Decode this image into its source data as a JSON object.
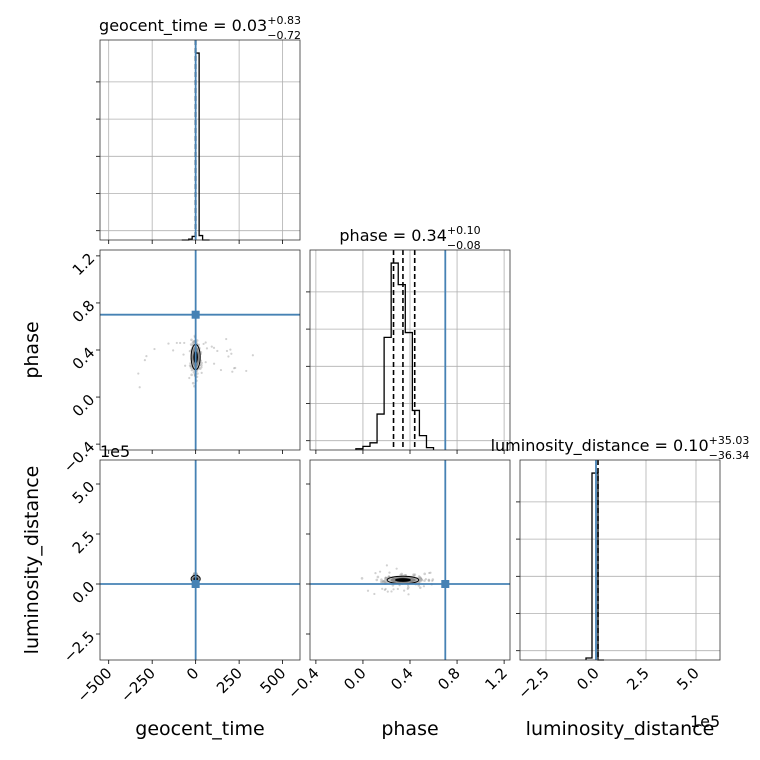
{
  "figure": {
    "type": "corner-plot",
    "truth_color": "#4682b4",
    "colors": {
      "hist": "#000000",
      "grid": "#b0b0b0",
      "scatter": "#808080"
    }
  },
  "chart_data": {
    "type": "corner",
    "parameters": [
      {
        "name": "geocent_time",
        "axis_label": "geocent_time",
        "range": [
          -550,
          600
        ],
        "ticks": [
          -500,
          -250,
          0,
          250,
          500
        ],
        "tick_labels": [
          "−500",
          "−250",
          "0",
          "250",
          "500"
        ],
        "median": 0.03,
        "q_lower": -0.69,
        "q_upper": 0.86,
        "truth": 0,
        "title": {
          "lhs": "geocent_time = 0.03",
          "sup": "+0.83",
          "sub": "−0.72"
        },
        "hist": {
          "edges": [
            -80,
            -60,
            -40,
            -20,
            0,
            20,
            40,
            60,
            80
          ],
          "counts": [
            0,
            0,
            1,
            4,
            210,
            5,
            0,
            0
          ]
        }
      },
      {
        "name": "phase",
        "axis_label": "phase",
        "range": [
          -0.45,
          1.25
        ],
        "ticks": [
          -0.4,
          0.0,
          0.4,
          0.8,
          1.2
        ],
        "tick_labels": [
          "−0.4",
          "0.0",
          "0.4",
          "0.8",
          "1.2"
        ],
        "median": 0.34,
        "q_lower": 0.26,
        "q_upper": 0.44,
        "truth": 0.7,
        "title": {
          "lhs": "phase = 0.34",
          "sup": "+0.10",
          "sub": "−0.08"
        },
        "hist": {
          "edges": [
            -0.06,
            0.0,
            0.06,
            0.12,
            0.18,
            0.24,
            0.3,
            0.36,
            0.42,
            0.48,
            0.54,
            0.6
          ],
          "counts": [
            1,
            3,
            6,
            30,
            94,
            156,
            138,
            98,
            33,
            12,
            2
          ]
        }
      },
      {
        "name": "luminosity_distance",
        "axis_label": "luminosity_distance",
        "range": [
          -3.8,
          6.2
        ],
        "ticks": [
          -2.5,
          0.0,
          2.5,
          5.0
        ],
        "tick_labels": [
          "−2.5",
          "0.0",
          "2.5",
          "5.0"
        ],
        "offset_text": "1e5",
        "median": 0.1,
        "q_lower": -36.24,
        "q_upper": 35.13,
        "truth": 0,
        "title": {
          "lhs": "luminosity_distance = 0.10",
          "sup": "+35.03",
          "sub": "−36.34"
        },
        "hist": {
          "edges": [
            -0.5,
            -0.2,
            0.1,
            0.4
          ],
          "counts": [
            2,
            190,
            0
          ]
        }
      }
    ],
    "pairs": [
      {
        "x": "geocent_time",
        "y": "phase",
        "center": [
          0,
          0.34
        ],
        "spread": [
          12,
          0.08
        ],
        "outlier_spread": [
          170,
          0.09
        ]
      },
      {
        "x": "geocent_time",
        "y": "luminosity_distance",
        "center": [
          0,
          0.25
        ],
        "spread": [
          6,
          0.12
        ],
        "outlier_spread": [
          0,
          0
        ]
      },
      {
        "x": "phase",
        "y": "luminosity_distance",
        "center": [
          0.34,
          0.2
        ],
        "spread": [
          0.1,
          0.12
        ],
        "outlier_spread": [
          0.12,
          0.35
        ]
      }
    ]
  }
}
